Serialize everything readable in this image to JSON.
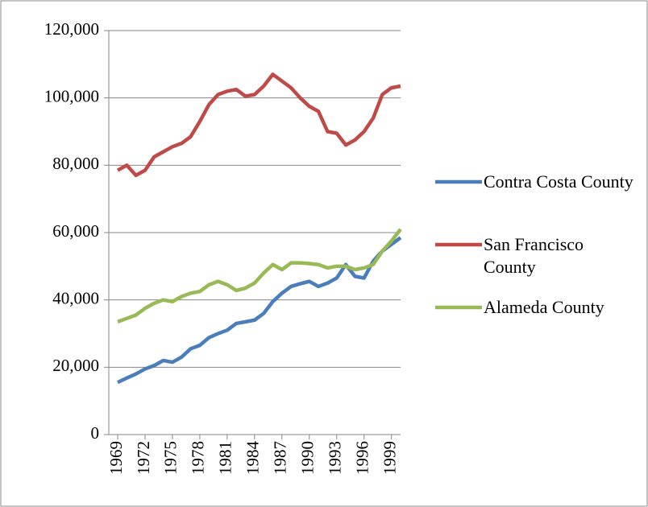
{
  "chart_data": {
    "type": "line",
    "x": [
      1969,
      1970,
      1971,
      1972,
      1973,
      1974,
      1975,
      1976,
      1977,
      1978,
      1979,
      1980,
      1981,
      1982,
      1983,
      1984,
      1985,
      1986,
      1987,
      1988,
      1989,
      1990,
      1991,
      1992,
      1993,
      1994,
      1995,
      1996,
      1997,
      1998,
      1999,
      2000
    ],
    "series": [
      {
        "name": "Contra Costa County",
        "color": "#4a7ebb",
        "values": [
          15500,
          16800,
          18000,
          19500,
          20500,
          22000,
          21500,
          23000,
          25500,
          26500,
          28800,
          30000,
          31000,
          33000,
          33500,
          34000,
          36000,
          39500,
          42000,
          44000,
          44800,
          45500,
          44000,
          45000,
          46500,
          50500,
          47000,
          46500,
          51500,
          54500,
          56500,
          58500
        ]
      },
      {
        "name": "San Francisco County",
        "color": "#be4b48",
        "values": [
          78500,
          80000,
          77000,
          78500,
          82500,
          84000,
          85500,
          86500,
          88500,
          93000,
          98000,
          101000,
          102000,
          102500,
          100500,
          101000,
          103500,
          107000,
          105000,
          103000,
          100000,
          97500,
          96000,
          90000,
          89500,
          86000,
          87500,
          90000,
          94000,
          101000,
          103000,
          103500
        ]
      },
      {
        "name": "Alameda County",
        "color": "#98b954",
        "values": [
          33500,
          34500,
          35500,
          37500,
          39000,
          40000,
          39500,
          41000,
          42000,
          42500,
          44500,
          45500,
          44500,
          42800,
          43500,
          45000,
          48000,
          50500,
          49000,
          51000,
          51000,
          50800,
          50500,
          49500,
          50000,
          50000,
          49000,
          49500,
          50500,
          54500,
          57500,
          61000
        ]
      }
    ],
    "xlim": [
      1969,
      2000
    ],
    "xticks": [
      1969,
      1972,
      1975,
      1978,
      1981,
      1984,
      1987,
      1990,
      1993,
      1996,
      1999
    ],
    "ylim": [
      0,
      120000
    ],
    "yticks": [
      0,
      {
        "value": 20000,
        "label": "20,000"
      },
      {
        "value": 40000,
        "label": "40,000"
      },
      {
        "value": 60000,
        "label": "60,000"
      },
      {
        "value": 80000,
        "label": "80,000"
      },
      {
        "value": 100000,
        "label": "100,000"
      },
      {
        "value": 120000,
        "label": "120,000"
      }
    ],
    "grid": true,
    "legend": "right"
  }
}
